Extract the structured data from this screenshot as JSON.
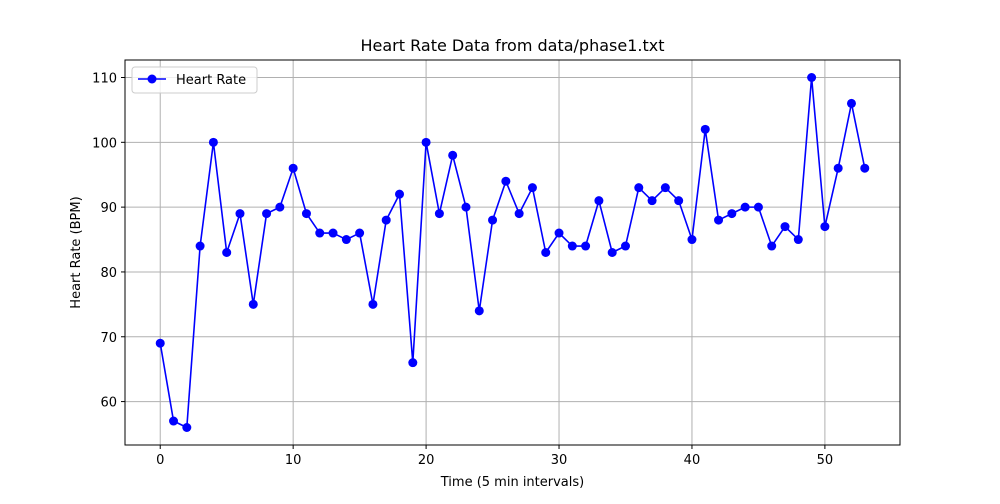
{
  "chart_data": {
    "type": "line",
    "title": "Heart Rate Data from data/phase1.txt",
    "xlabel": "Time (5 min intervals)",
    "ylabel": "Heart Rate (BPM)",
    "xlim": [
      -2.65,
      55.65
    ],
    "ylim": [
      53.3,
      112.7
    ],
    "xticks": [
      0,
      10,
      20,
      30,
      40,
      50
    ],
    "yticks": [
      60,
      70,
      80,
      90,
      100,
      110
    ],
    "grid": true,
    "legend_position": "upper-left",
    "colors": {
      "line": "#0000ff",
      "grid": "#b0b0b0"
    },
    "series": [
      {
        "name": "Heart Rate",
        "x": [
          0,
          1,
          2,
          3,
          4,
          5,
          6,
          7,
          8,
          9,
          10,
          11,
          12,
          13,
          14,
          15,
          16,
          17,
          18,
          19,
          20,
          21,
          22,
          23,
          24,
          25,
          26,
          27,
          28,
          29,
          30,
          31,
          32,
          33,
          34,
          35,
          36,
          37,
          38,
          39,
          40,
          41,
          42,
          43,
          44,
          45,
          46,
          47,
          48,
          49,
          50,
          51,
          52,
          53
        ],
        "values": [
          69,
          57,
          56,
          84,
          100,
          83,
          89,
          75,
          89,
          90,
          96,
          89,
          86,
          86,
          85,
          86,
          75,
          88,
          92,
          66,
          100,
          89,
          98,
          90,
          74,
          88,
          94,
          89,
          93,
          83,
          86,
          84,
          84,
          91,
          83,
          84,
          93,
          91,
          93,
          91,
          85,
          102,
          88,
          89,
          90,
          90,
          84,
          87,
          85,
          110,
          87,
          96,
          106,
          96
        ]
      }
    ]
  }
}
